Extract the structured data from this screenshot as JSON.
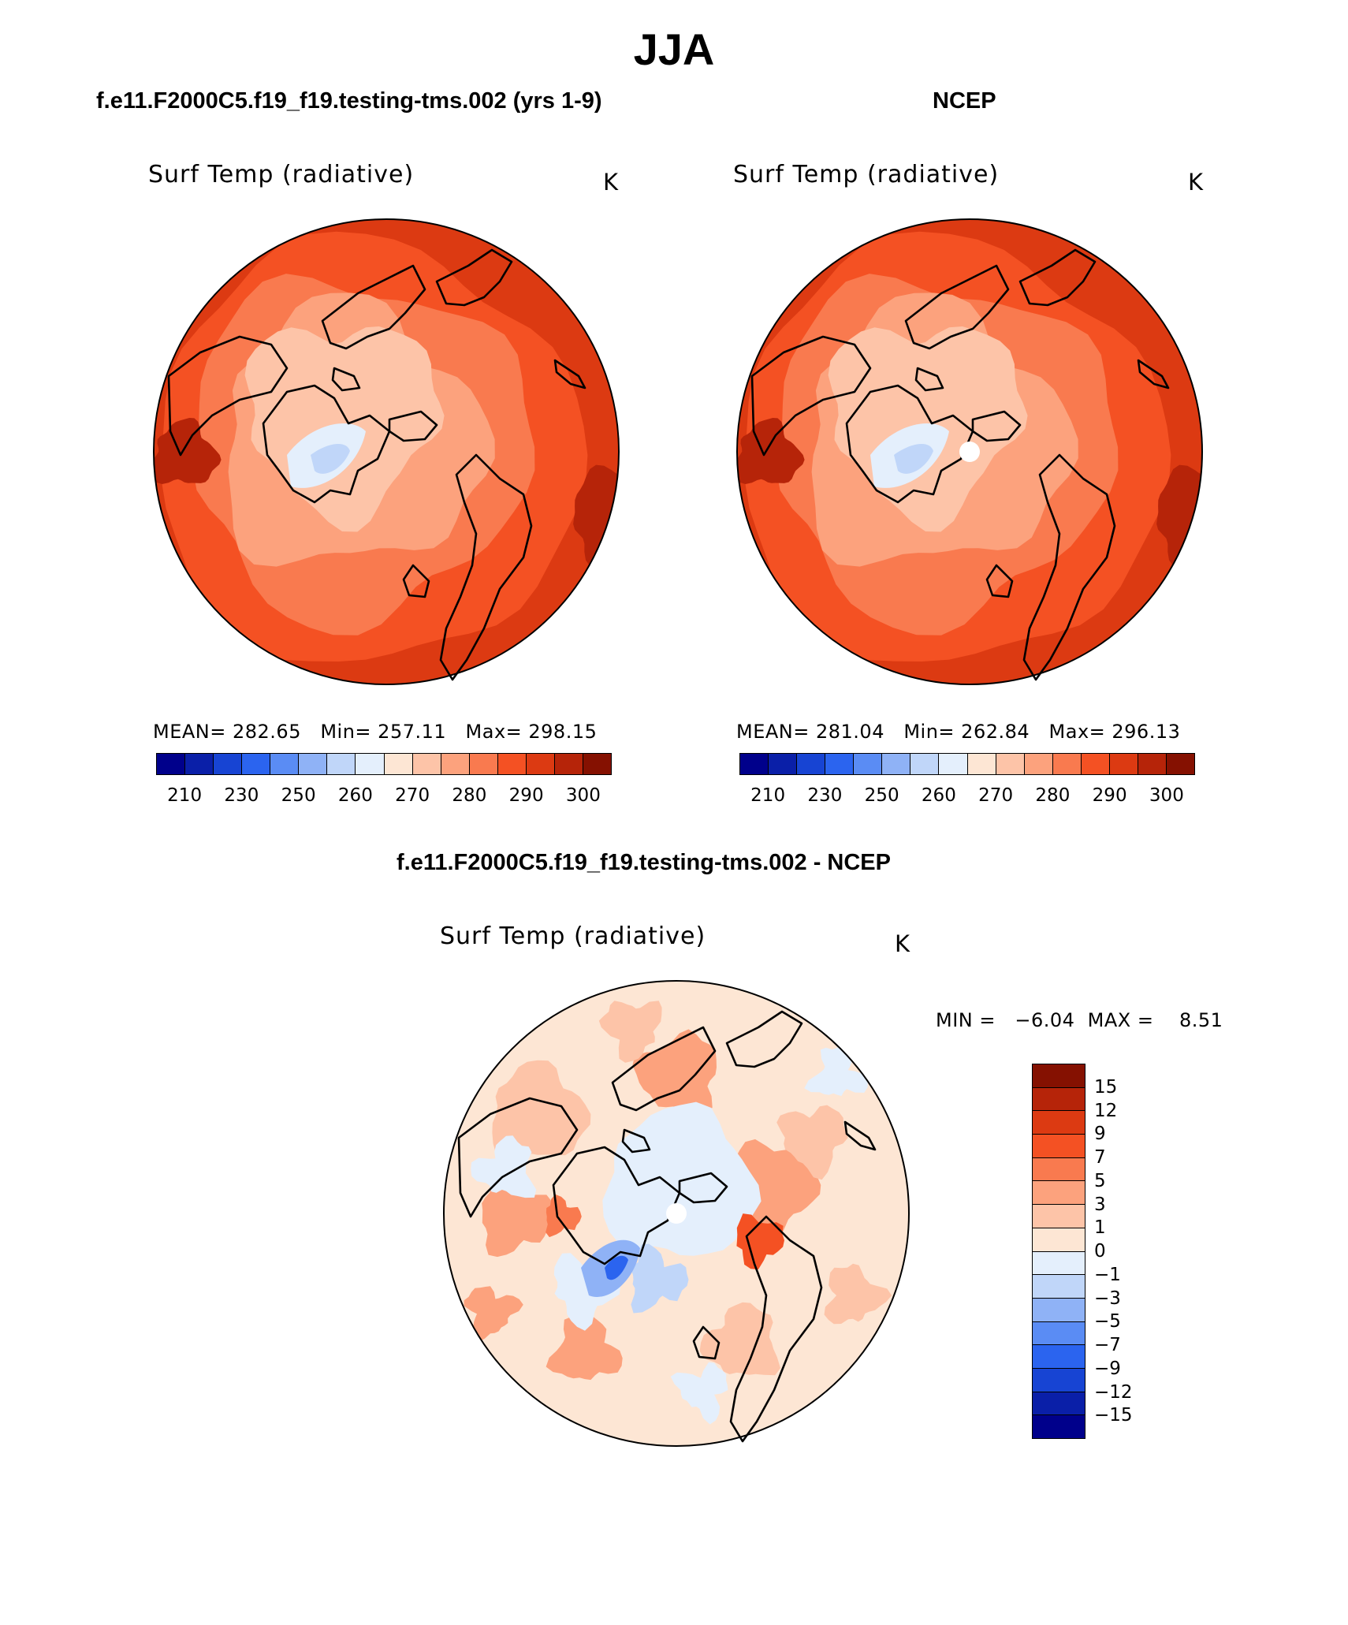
{
  "title": "JJA",
  "panels": [
    {
      "heading": "f.e11.F2000C5.f19_f19.testing-tms.002 (yrs 1-9)",
      "variable": "Surf Temp (radiative)",
      "units": "K",
      "stats_label": "MEAN= 282.65   Min= 257.11   Max= 298.15",
      "has_pole_hole": false
    },
    {
      "heading": "NCEP",
      "variable": "Surf Temp (radiative)",
      "units": "K",
      "stats_label": "MEAN= 281.04   Min= 262.84   Max= 296.13",
      "has_pole_hole": true
    },
    {
      "heading": "f.e11.F2000C5.f19_f19.testing-tms.002 - NCEP",
      "variable": "Surf Temp (radiative)",
      "units": "K",
      "stats_label": "MIN =   −6.04  MAX =    8.51",
      "has_pole_hole": true
    }
  ],
  "abs_colorbar": {
    "colors": [
      "#00008b",
      "#0a1fa8",
      "#1744d3",
      "#2b64ef",
      "#5a8cf4",
      "#8fb2f6",
      "#c0d6f9",
      "#e4effc",
      "#fde6d4",
      "#fdc4a8",
      "#fca27d",
      "#f97a4f",
      "#f45123",
      "#dc3a12",
      "#b62409",
      "#851101"
    ],
    "tick_labels": [
      "210",
      "230",
      "250",
      "260",
      "270",
      "280",
      "290",
      "300"
    ]
  },
  "diff_colorbar": {
    "colors": [
      "#851101",
      "#b62409",
      "#dc3a12",
      "#f45123",
      "#f97a4f",
      "#fca27d",
      "#fdc4a8",
      "#fde6d4",
      "#e4effc",
      "#c0d6f9",
      "#8fb2f6",
      "#5a8cf4",
      "#2b64ef",
      "#1744d3",
      "#0a1fa8",
      "#00008b"
    ],
    "tick_labels": [
      "15",
      "12",
      "9",
      "7",
      "5",
      "3",
      "1",
      "0",
      "−1",
      "−3",
      "−5",
      "−7",
      "−9",
      "−12",
      "−15"
    ]
  }
}
